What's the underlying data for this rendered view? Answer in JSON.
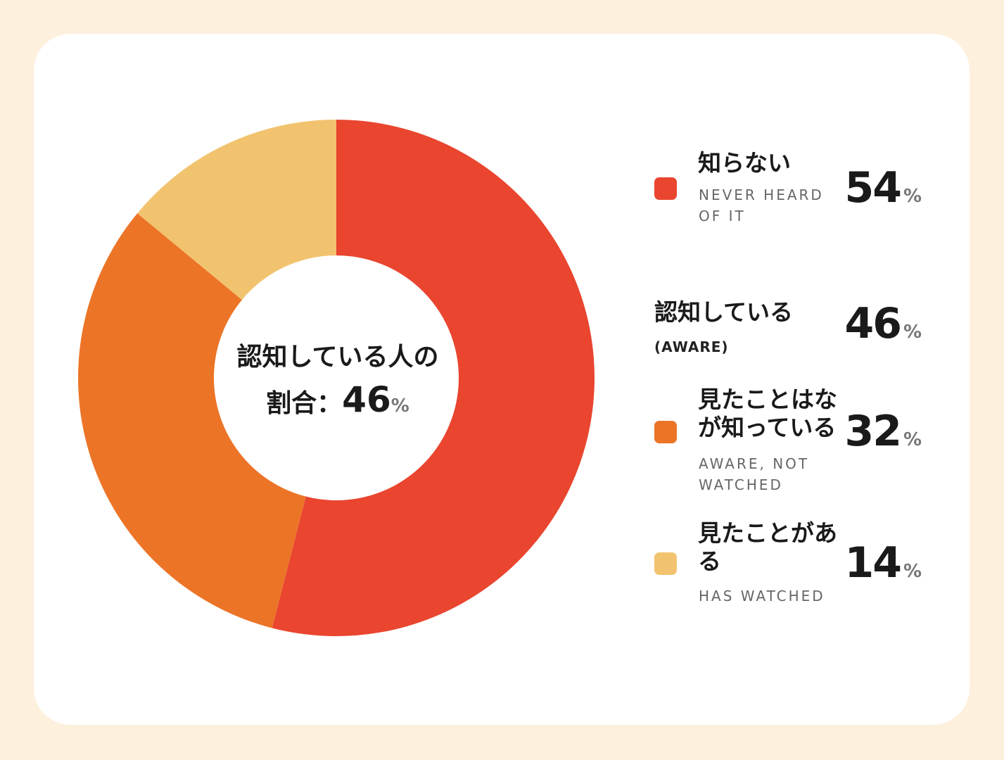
{
  "chart_data": {
    "type": "pie",
    "donut": true,
    "categories": [
      "知らない",
      "見たことはなが知っている",
      "見たことがある"
    ],
    "subtitles": [
      "NEVER HEARD OF IT",
      "AWARE, NOT WATCHED",
      "HAS WATCHED"
    ],
    "values": [
      54,
      32,
      14
    ],
    "colors": [
      "#e9452f",
      "#ec7427",
      "#f2c36f"
    ],
    "unit": "%",
    "center_label": "認知している人の割合：",
    "subtotal": {
      "name": "認知している",
      "subtitle": "(AWARE)",
      "value": 46
    }
  }
}
